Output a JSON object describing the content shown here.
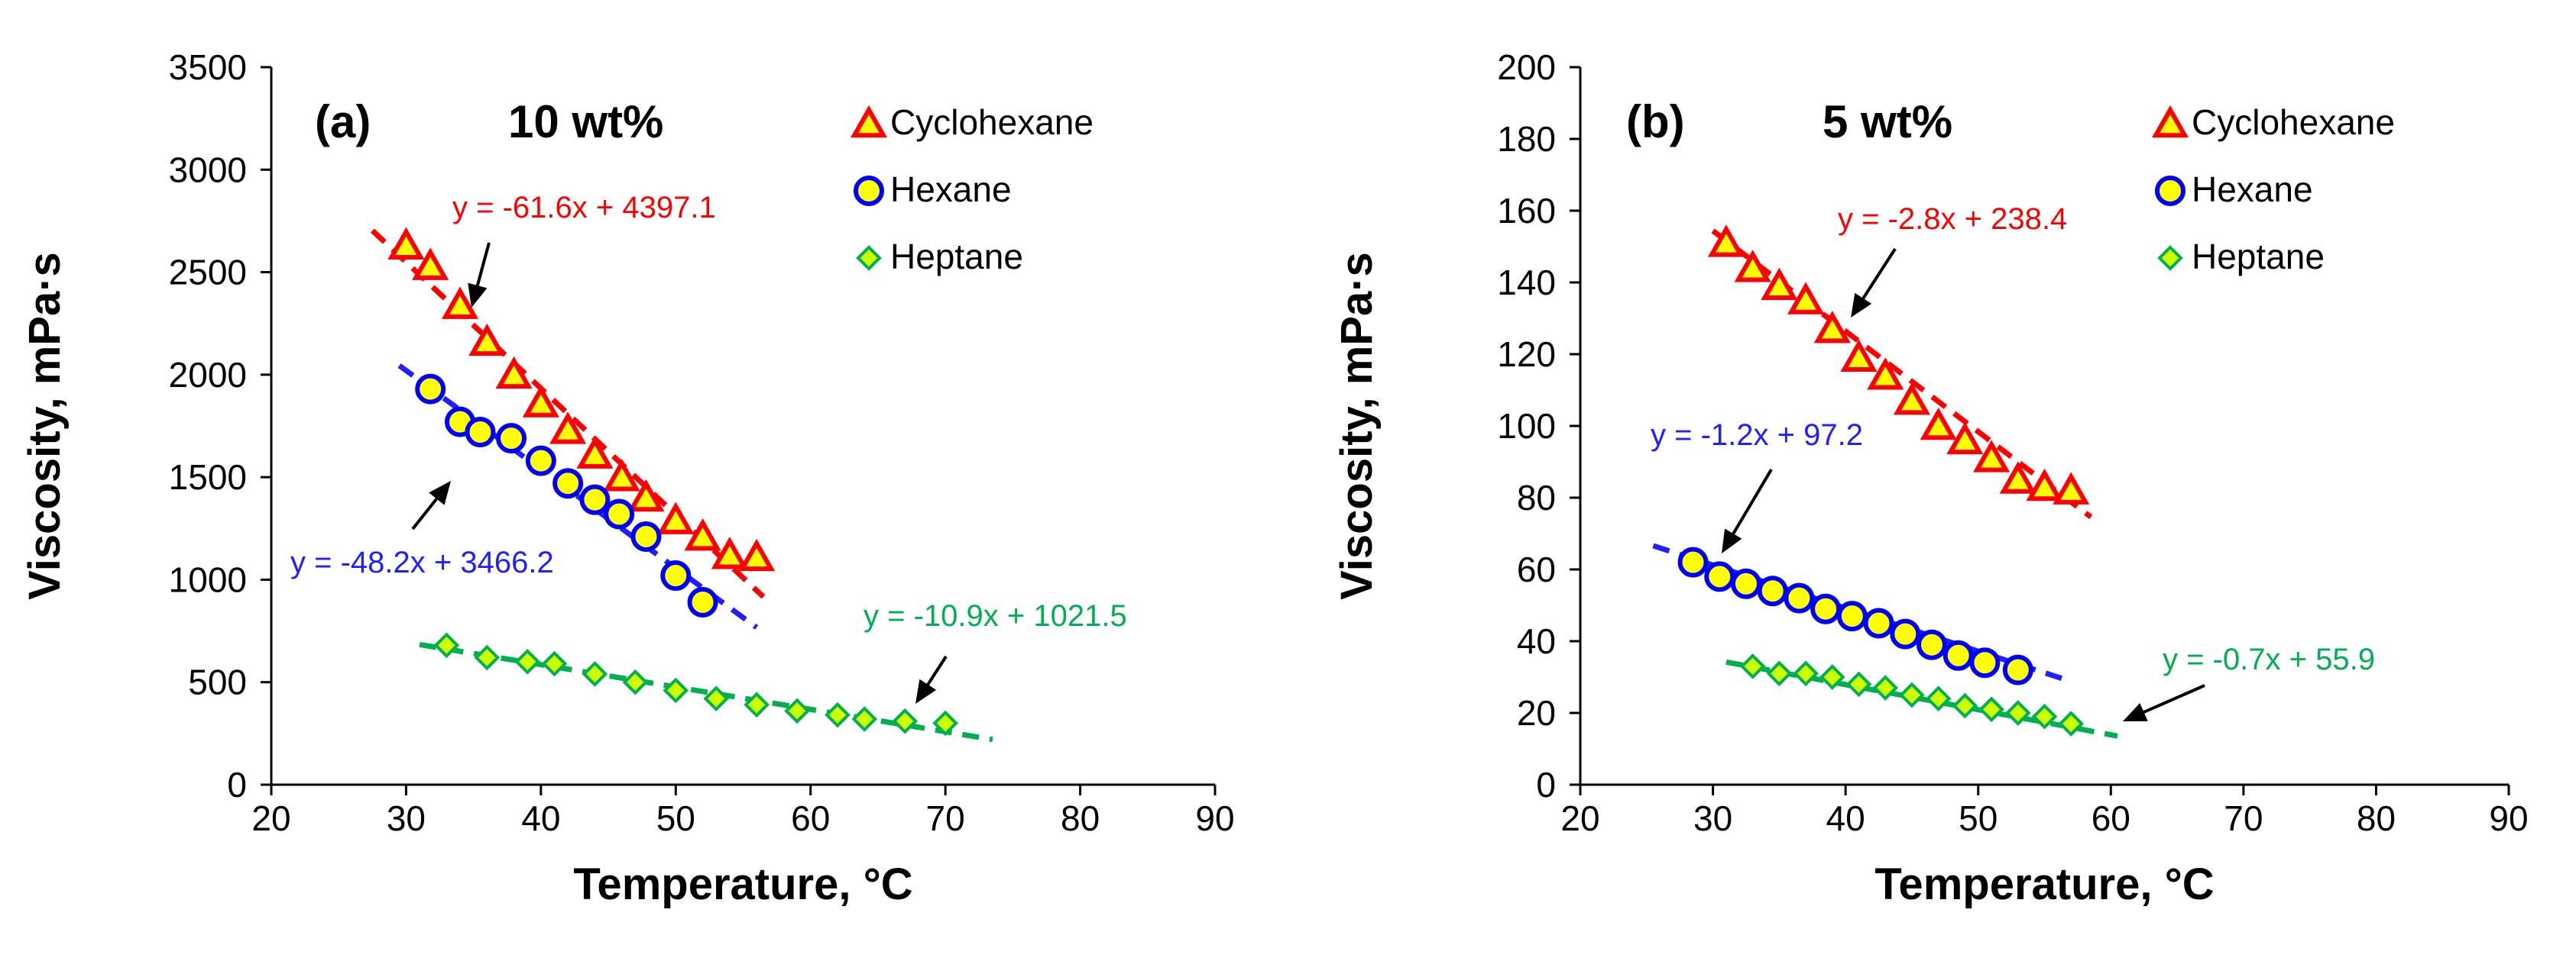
{
  "colors": {
    "cyclohexane_fill": "#FFFF00",
    "cyclohexane_stroke": "#FF0000",
    "hexane_fill": "#FFFF00",
    "hexane_stroke": "#0000FF",
    "heptane_fill": "#CCFF00",
    "heptane_stroke": "#00B050",
    "cyclohexane_line": "#FF0000",
    "hexane_line": "#2020FF",
    "heptane_line": "#00B050",
    "axis": "#000000",
    "arrow": "#000000"
  },
  "chart_data": [
    {
      "type": "scatter",
      "panel_label": "(a)",
      "concentration_label": "10 wt%",
      "xlabel": "Temperature, °C",
      "ylabel": "Viscosity, mPa·s",
      "xlim": [
        20,
        90
      ],
      "ylim": [
        0,
        3500
      ],
      "xticks": [
        20,
        30,
        40,
        50,
        60,
        70,
        80,
        90
      ],
      "yticks": [
        0,
        500,
        1000,
        1500,
        2000,
        2500,
        3000,
        3500
      ],
      "legend": [
        "Cyclohexane",
        "Hexane",
        "Heptane"
      ],
      "legend_position": "top-right",
      "grid": false,
      "series": [
        {
          "name": "Cyclohexane",
          "marker": "triangle",
          "x": [
            30,
            31.8,
            34,
            36,
            38,
            40,
            42,
            44,
            46,
            47.8,
            50,
            52,
            54,
            56
          ],
          "y": [
            2630,
            2530,
            2340,
            2160,
            2000,
            1860,
            1730,
            1610,
            1500,
            1400,
            1290,
            1210,
            1120,
            1110
          ],
          "fit": {
            "equation": "y = -61.6x + 4397.1",
            "slope": -61.6,
            "intercept": 4397.1,
            "x_range": [
              27.5,
              56.5
            ]
          }
        },
        {
          "name": "Hexane",
          "marker": "circle",
          "x": [
            31.8,
            34,
            35.5,
            37.8,
            40,
            42,
            44,
            45.8,
            47.8,
            50,
            52
          ],
          "y": [
            1930,
            1770,
            1720,
            1690,
            1580,
            1470,
            1390,
            1320,
            1210,
            1020,
            890
          ],
          "fit": {
            "equation": "y = -48.2x + 3466.2",
            "slope": -48.2,
            "intercept": 3466.2,
            "x_range": [
              29.5,
              56
            ]
          }
        },
        {
          "name": "Heptane",
          "marker": "diamond",
          "x": [
            33,
            36,
            39,
            41,
            44,
            47,
            50,
            53,
            56,
            59,
            62,
            64,
            67,
            70
          ],
          "y": [
            680,
            620,
            600,
            590,
            540,
            500,
            460,
            420,
            390,
            360,
            340,
            320,
            310,
            300
          ],
          "fit": {
            "equation": "y = -10.9x + 1021.5",
            "slope": -10.9,
            "intercept": 1021.5,
            "x_range": [
              31,
              73.5
            ]
          }
        }
      ]
    },
    {
      "type": "scatter",
      "panel_label": "(b)",
      "concentration_label": "5 wt%",
      "xlabel": "Temperature, °C",
      "ylabel": "Viscosity, mPa·s",
      "xlim": [
        20,
        90
      ],
      "ylim": [
        0,
        200
      ],
      "xticks": [
        20,
        30,
        40,
        50,
        60,
        70,
        80,
        90
      ],
      "yticks": [
        0,
        20,
        40,
        60,
        80,
        100,
        120,
        140,
        160,
        180,
        200
      ],
      "legend": [
        "Cyclohexane",
        "Hexane",
        "Heptane"
      ],
      "legend_position": "top-right",
      "grid": false,
      "series": [
        {
          "name": "Cyclohexane",
          "marker": "triangle",
          "x": [
            31,
            33,
            35,
            37,
            39,
            41,
            43,
            45,
            47,
            49,
            51,
            53,
            55,
            57
          ],
          "y": [
            151,
            144,
            139,
            135,
            127,
            119,
            114,
            107,
            100,
            96,
            91,
            85,
            83,
            82
          ],
          "fit": {
            "equation": "y = -2.8x + 238.4",
            "slope": -2.8,
            "intercept": 238.4,
            "x_range": [
              30,
              58.5
            ]
          }
        },
        {
          "name": "Hexane",
          "marker": "circle",
          "x": [
            28.5,
            30.5,
            32.5,
            34.5,
            36.5,
            38.5,
            40.5,
            42.5,
            44.5,
            46.5,
            48.5,
            50.5,
            53
          ],
          "y": [
            62,
            58,
            56,
            54,
            52,
            49,
            47,
            45,
            42,
            39,
            36,
            34,
            32
          ],
          "fit": {
            "equation": "y = -1.2x + 97.2",
            "slope": -1.2,
            "intercept": 97.2,
            "x_range": [
              25.5,
              56.5
            ]
          }
        },
        {
          "name": "Heptane",
          "marker": "diamond",
          "x": [
            33,
            35,
            37,
            39,
            41,
            43,
            45,
            47,
            49,
            51,
            53,
            55,
            57
          ],
          "y": [
            33,
            31,
            31,
            30,
            28,
            27,
            25,
            24,
            22,
            21,
            20,
            19,
            17
          ],
          "fit": {
            "equation": "y = -0.7x + 55.9",
            "slope": -0.7,
            "intercept": 55.9,
            "x_range": [
              31,
              60.5
            ]
          }
        }
      ]
    }
  ]
}
